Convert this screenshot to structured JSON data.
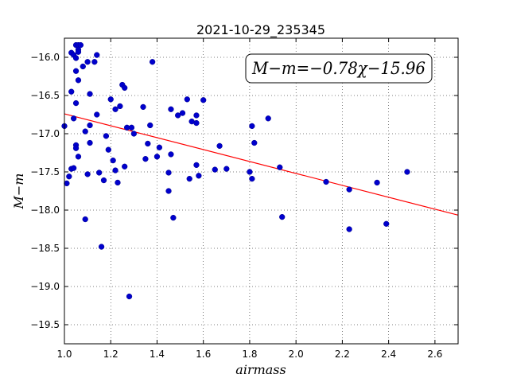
{
  "chart_data": {
    "type": "scatter",
    "title": "2021-10-29_235345",
    "xlabel": "airmass",
    "ylabel": "M−m",
    "xlim": [
      1.0,
      2.7
    ],
    "ylim": [
      -19.75,
      -15.75
    ],
    "y_inverted": true,
    "grid": true,
    "x_ticks": [
      "1.0",
      "1.2",
      "1.4",
      "1.6",
      "1.8",
      "2.0",
      "2.2",
      "2.4",
      "2.6"
    ],
    "x_tick_values": [
      1.0,
      1.2,
      1.4,
      1.6,
      1.8,
      2.0,
      2.2,
      2.4,
      2.6
    ],
    "y_ticks": [
      "−16.0",
      "−16.5",
      "−17.0",
      "−17.5",
      "−18.0",
      "−18.5",
      "−19.0",
      "−19.5"
    ],
    "y_tick_values": [
      -16.0,
      -16.5,
      -17.0,
      -17.5,
      -18.0,
      -18.5,
      -19.0,
      -19.5
    ],
    "annotation": "M−m=−0.78χ−15.96",
    "fit": {
      "slope": -0.78,
      "intercept": -15.96,
      "color": "#ff0000"
    },
    "point_color": "#0000cc",
    "points": [
      [
        1.0,
        -16.9
      ],
      [
        1.01,
        -17.65
      ],
      [
        1.02,
        -17.56
      ],
      [
        1.03,
        -17.46
      ],
      [
        1.04,
        -17.45
      ],
      [
        1.03,
        -16.45
      ],
      [
        1.03,
        -15.94
      ],
      [
        1.04,
        -15.97
      ],
      [
        1.05,
        -16.18
      ],
      [
        1.05,
        -16.6
      ],
      [
        1.04,
        -16.8
      ],
      [
        1.05,
        -17.15
      ],
      [
        1.05,
        -17.19
      ],
      [
        1.06,
        -17.3
      ],
      [
        1.05,
        -16.01
      ],
      [
        1.05,
        -15.84
      ],
      [
        1.06,
        -15.84
      ],
      [
        1.06,
        -15.9
      ],
      [
        1.06,
        -15.93
      ],
      [
        1.06,
        -16.3
      ],
      [
        1.07,
        -15.84
      ],
      [
        1.08,
        -16.12
      ],
      [
        1.09,
        -16.97
      ],
      [
        1.09,
        -18.12
      ],
      [
        1.1,
        -16.06
      ],
      [
        1.1,
        -17.53
      ],
      [
        1.11,
        -16.48
      ],
      [
        1.11,
        -16.89
      ],
      [
        1.11,
        -17.12
      ],
      [
        1.13,
        -16.06
      ],
      [
        1.14,
        -15.97
      ],
      [
        1.14,
        -16.75
      ],
      [
        1.15,
        -17.51
      ],
      [
        1.16,
        -18.48
      ],
      [
        1.17,
        -17.61
      ],
      [
        1.18,
        -17.03
      ],
      [
        1.19,
        -17.21
      ],
      [
        1.2,
        -16.55
      ],
      [
        1.21,
        -17.35
      ],
      [
        1.22,
        -16.68
      ],
      [
        1.22,
        -17.48
      ],
      [
        1.23,
        -17.64
      ],
      [
        1.24,
        -16.64
      ],
      [
        1.25,
        -16.36
      ],
      [
        1.26,
        -16.4
      ],
      [
        1.26,
        -17.43
      ],
      [
        1.27,
        -16.92
      ],
      [
        1.28,
        -19.13
      ],
      [
        1.29,
        -16.92
      ],
      [
        1.3,
        -17.0
      ],
      [
        1.34,
        -16.65
      ],
      [
        1.35,
        -17.33
      ],
      [
        1.36,
        -17.13
      ],
      [
        1.37,
        -16.89
      ],
      [
        1.38,
        -16.06
      ],
      [
        1.4,
        -17.3
      ],
      [
        1.41,
        -17.18
      ],
      [
        1.45,
        -17.75
      ],
      [
        1.45,
        -17.51
      ],
      [
        1.46,
        -16.68
      ],
      [
        1.46,
        -17.27
      ],
      [
        1.47,
        -18.1
      ],
      [
        1.49,
        -16.76
      ],
      [
        1.51,
        -16.73
      ],
      [
        1.53,
        -16.55
      ],
      [
        1.54,
        -17.59
      ],
      [
        1.55,
        -16.84
      ],
      [
        1.57,
        -17.41
      ],
      [
        1.57,
        -16.76
      ],
      [
        1.57,
        -16.86
      ],
      [
        1.58,
        -17.55
      ],
      [
        1.6,
        -16.56
      ],
      [
        1.65,
        -17.47
      ],
      [
        1.67,
        -17.16
      ],
      [
        1.7,
        -17.46
      ],
      [
        1.8,
        -17.5
      ],
      [
        1.81,
        -16.9
      ],
      [
        1.81,
        -17.59
      ],
      [
        1.82,
        -17.12
      ],
      [
        1.88,
        -16.8
      ],
      [
        1.93,
        -17.44
      ],
      [
        1.94,
        -18.09
      ],
      [
        2.13,
        -17.63
      ],
      [
        2.23,
        -17.73
      ],
      [
        2.23,
        -18.25
      ],
      [
        2.35,
        -17.64
      ],
      [
        2.39,
        -18.18
      ],
      [
        2.48,
        -17.5
      ]
    ]
  }
}
